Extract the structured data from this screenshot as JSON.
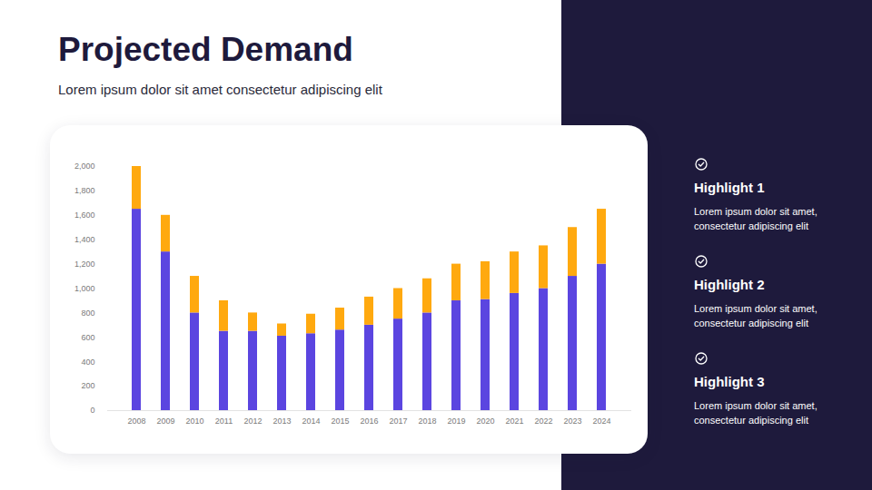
{
  "chart_data": {
    "type": "bar",
    "stacked": true,
    "title": "Projected Demand",
    "subtitle": "Lorem ipsum dolor sit amet consectetur adipiscing elit",
    "categories": [
      "2008",
      "2009",
      "2010",
      "2011",
      "2012",
      "2013",
      "2014",
      "2015",
      "2016",
      "2017",
      "2018",
      "2019",
      "2020",
      "2021",
      "2022",
      "2023",
      "2024"
    ],
    "series": [
      {
        "color": "#5b45e0",
        "values": [
          1650,
          1300,
          800,
          650,
          650,
          610,
          630,
          660,
          700,
          750,
          800,
          900,
          910,
          960,
          1000,
          1100,
          1200
        ]
      },
      {
        "color": "#ffa90f",
        "values": [
          350,
          300,
          300,
          250,
          150,
          100,
          160,
          180,
          230,
          250,
          280,
          300,
          310,
          340,
          350,
          400,
          450
        ]
      }
    ],
    "ylim": [
      0,
      2000
    ],
    "yticks": [
      0,
      200,
      400,
      600,
      800,
      {
        "value": 1000,
        "label": "1,000"
      },
      {
        "value": 1200,
        "label": "1,200"
      },
      {
        "value": 1400,
        "label": "1,400"
      },
      {
        "value": 1600,
        "label": "1,600"
      },
      {
        "value": 1800,
        "label": "1,800"
      },
      {
        "value": 2000,
        "label": "2,000"
      }
    ],
    "grid": false
  },
  "highlights": [
    {
      "title": "Highlight 1",
      "text": "Lorem ipsum dolor sit amet, consectetur adipiscing elit"
    },
    {
      "title": "Highlight 2",
      "text": "Lorem ipsum dolor sit amet, consectetur adipiscing elit"
    },
    {
      "title": "Highlight 3",
      "text": "Lorem ipsum dolor sit amet, consectetur adipiscing elit"
    }
  ]
}
